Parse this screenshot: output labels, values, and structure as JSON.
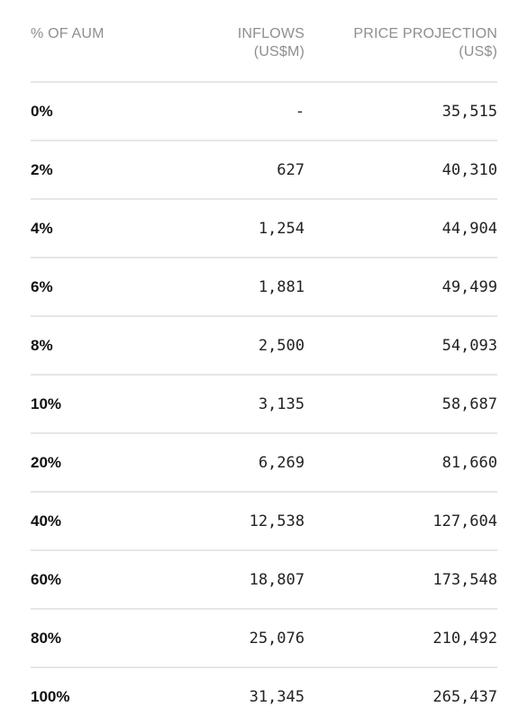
{
  "table": {
    "headers": {
      "aum": "% OF AUM",
      "inflows_line1": "INFLOWS",
      "inflows_line2": "(US$M)",
      "price_line1": "PRICE PROJECTION",
      "price_line2": "(US$)"
    },
    "rows": [
      {
        "aum": "0%",
        "inflows": "-",
        "price": "35,515"
      },
      {
        "aum": "2%",
        "inflows": "627",
        "price": "40,310"
      },
      {
        "aum": "4%",
        "inflows": "1,254",
        "price": "44,904"
      },
      {
        "aum": "6%",
        "inflows": "1,881",
        "price": "49,499"
      },
      {
        "aum": "8%",
        "inflows": "2,500",
        "price": "54,093"
      },
      {
        "aum": "10%",
        "inflows": "3,135",
        "price": "58,687"
      },
      {
        "aum": "20%",
        "inflows": "6,269",
        "price": "81,660"
      },
      {
        "aum": "40%",
        "inflows": "12,538",
        "price": "127,604"
      },
      {
        "aum": "60%",
        "inflows": "18,807",
        "price": "173,548"
      },
      {
        "aum": "80%",
        "inflows": "25,076",
        "price": "210,492"
      },
      {
        "aum": "100%",
        "inflows": "31,345",
        "price": "265,437"
      }
    ]
  }
}
